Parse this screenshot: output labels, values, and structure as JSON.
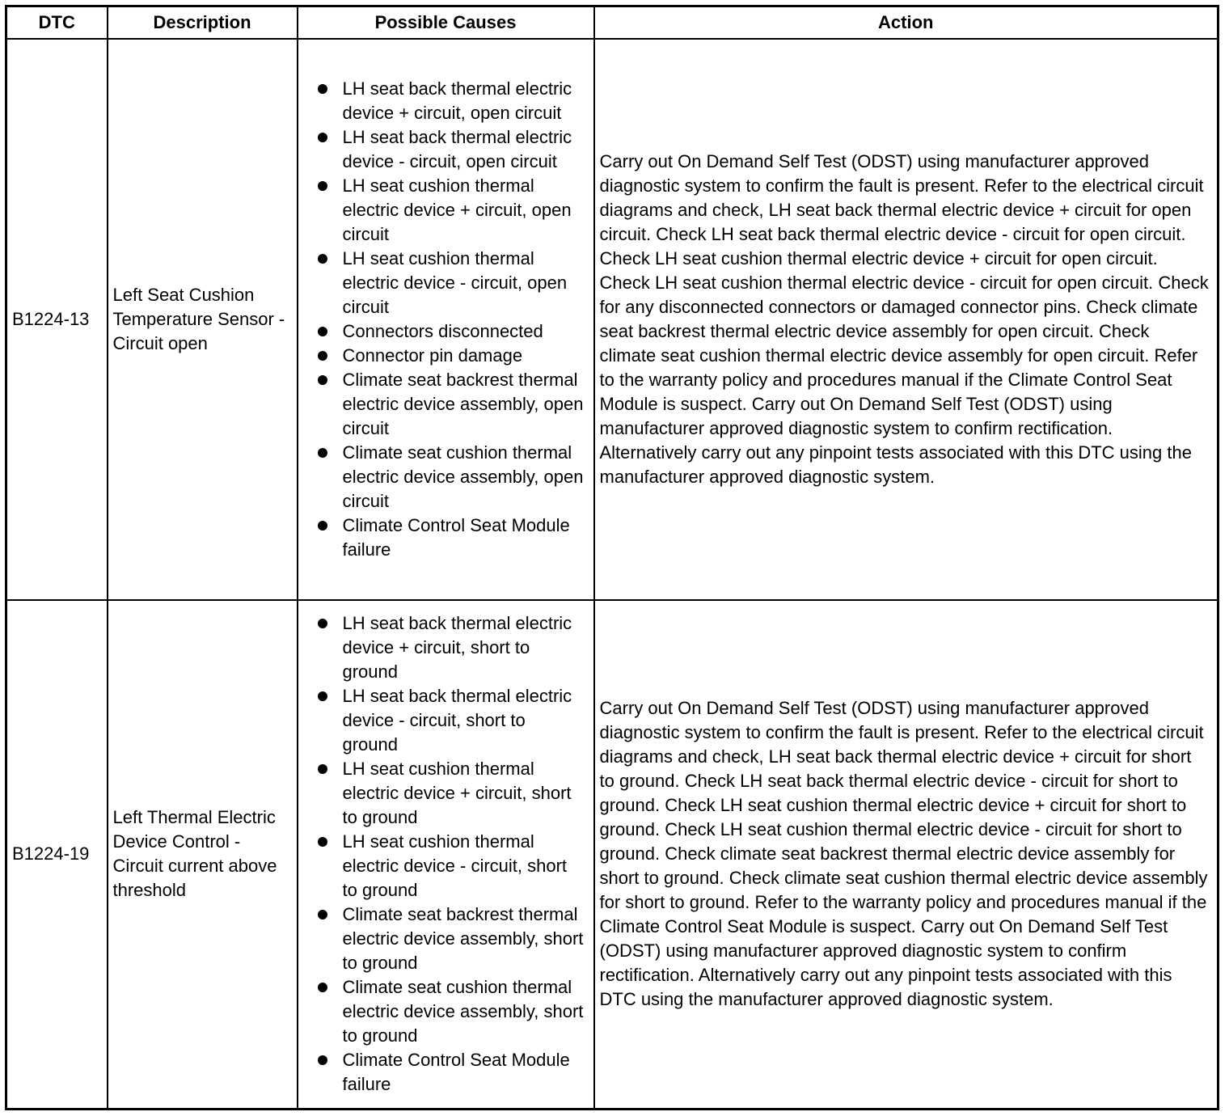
{
  "headers": {
    "dtc": "DTC",
    "description": "Description",
    "causes": "Possible Causes",
    "action": "Action"
  },
  "rows": [
    {
      "dtc": "B1224-13",
      "description": "Left Seat Cushion Temperature Sensor - Circuit open",
      "causes": [
        "LH seat back thermal electric device + circuit, open circuit",
        "LH seat back thermal electric device - circuit, open circuit",
        "LH seat cushion thermal electric device + circuit, open circuit",
        "LH seat cushion thermal electric device - circuit, open circuit",
        "Connectors disconnected",
        "Connector pin damage",
        "Climate seat backrest thermal electric device assembly, open circuit",
        "Climate seat cushion thermal electric device assembly, open circuit",
        "Climate Control Seat Module failure"
      ],
      "action": "Carry out On Demand Self Test (ODST) using manufacturer approved diagnostic system to confirm the fault is present. Refer to the electrical circuit diagrams and check, LH seat back thermal electric device + circuit for open circuit. Check LH seat back thermal electric device - circuit for open circuit. Check LH seat cushion thermal electric device + circuit for open circuit. Check LH seat cushion thermal electric device - circuit for open circuit. Check for any disconnected connectors or damaged connector pins. Check climate seat backrest thermal electric device assembly for open circuit. Check climate seat cushion thermal electric device assembly for open circuit. Refer to the warranty policy and procedures manual if the Climate Control Seat Module is suspect. Carry out On Demand Self Test (ODST) using manufacturer approved diagnostic system to confirm rectification. Alternatively carry out any pinpoint tests associated with this DTC using the manufacturer approved diagnostic system."
    },
    {
      "dtc": "B1224-19",
      "description": "Left Thermal Electric Device Control - Circuit current above threshold",
      "causes": [
        "LH seat back thermal electric device + circuit, short to ground",
        "LH seat back thermal electric device - circuit, short to ground",
        "LH seat cushion thermal electric device + circuit, short to ground",
        "LH seat cushion thermal electric device - circuit, short to ground",
        "Climate seat backrest thermal electric device assembly, short to ground",
        "Climate seat cushion thermal electric device assembly, short to ground",
        "Climate Control Seat Module failure"
      ],
      "action": "Carry out On Demand Self Test (ODST) using manufacturer approved diagnostic system to confirm the fault is present. Refer to the electrical circuit diagrams and check, LH seat back thermal electric device + circuit for short to ground. Check LH seat back thermal electric device - circuit for short to ground. Check LH seat cushion thermal electric device + circuit for short to ground. Check LH seat cushion thermal electric device - circuit for short to ground. Check climate seat backrest thermal electric device assembly for short to ground. Check climate seat cushion thermal electric device assembly for short to ground. Refer to the warranty policy and procedures manual if the Climate Control Seat Module is suspect. Carry out On Demand Self Test (ODST) using manufacturer approved diagnostic system to confirm rectification. Alternatively carry out any pinpoint tests associated with this DTC using the manufacturer approved diagnostic system."
    }
  ]
}
